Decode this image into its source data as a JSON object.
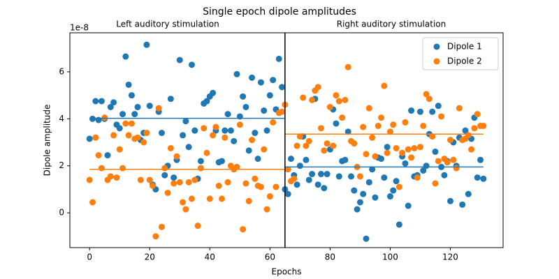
{
  "chart_data": {
    "type": "scatter",
    "title": "Single epoch dipole amplitudes",
    "xlabel": "Epochs",
    "ylabel": "Dipole amplitude",
    "y_offset_label": "1e-8",
    "annotations": [
      "Left auditory stimulation",
      "Right auditory stimulation"
    ],
    "legend": "upper right",
    "xlim": [
      -6.55,
      137.55
    ],
    "ylim": [
      -1.48,
      7.66
    ],
    "xticks": [
      0,
      20,
      40,
      60,
      80,
      100,
      120
    ],
    "yticks": [
      0,
      2,
      4,
      6
    ],
    "vline": 65,
    "x": [
      0,
      1,
      2,
      3,
      4,
      5,
      6,
      7,
      8,
      9,
      10,
      11,
      12,
      13,
      14,
      15,
      16,
      17,
      18,
      19,
      20,
      21,
      22,
      23,
      24,
      25,
      26,
      27,
      28,
      29,
      30,
      31,
      32,
      33,
      34,
      35,
      36,
      37,
      38,
      39,
      40,
      41,
      42,
      43,
      44,
      45,
      46,
      47,
      48,
      49,
      50,
      51,
      52,
      53,
      54,
      55,
      56,
      57,
      58,
      59,
      60,
      61,
      62,
      63,
      64,
      65,
      66,
      67,
      68,
      69,
      70,
      71,
      72,
      73,
      74,
      75,
      76,
      77,
      78,
      79,
      80,
      81,
      82,
      83,
      84,
      85,
      86,
      87,
      88,
      89,
      90,
      91,
      92,
      93,
      94,
      95,
      96,
      97,
      98,
      99,
      100,
      101,
      102,
      103,
      104,
      105,
      106,
      107,
      108,
      109,
      110,
      111,
      112,
      113,
      114,
      115,
      116,
      117,
      118,
      119,
      120,
      121,
      122,
      123,
      124,
      125,
      126,
      127,
      128,
      129,
      130,
      131
    ],
    "series": [
      {
        "name": "Dipole 1",
        "color": "#1f77b4",
        "values": [
          3.15,
          4.0,
          4.75,
          3.95,
          4.75,
          4.0,
          2.45,
          4.5,
          4.7,
          3.75,
          3.6,
          4.2,
          6.65,
          5.45,
          5.0,
          4.2,
          4.5,
          3.1,
          3.4,
          7.15,
          4.55,
          1.2,
          1.0,
          4.3,
          3.4,
          1.6,
          2.0,
          4.85,
          1.5,
          2.25,
          6.5,
          3.3,
          3.9,
          2.8,
          6.3,
          3.5,
          1.45,
          2.2,
          4.65,
          4.75,
          4.95,
          5.1,
          3.5,
          2.15,
          2.2,
          3.5,
          4.2,
          3.5,
          3.05,
          5.9,
          4.1,
          4.95,
          4.5,
          2.65,
          5.75,
          3.4,
          2.3,
          5.55,
          4.35,
          3.5,
          5.0,
          5.65,
          4.4,
          6.55,
          5.35,
          1.0,
          0.8,
          2.3,
          1.6,
          1.2,
          2.0,
          3.25,
          2.25,
          1.4,
          1.65,
          4.85,
          1.2,
          1.65,
          1.05,
          1.65,
          2.7,
          4.4,
          3.8,
          1.55,
          2.2,
          2.25,
          3.45,
          1.55,
          0.95,
          0.15,
          0.45,
          0.8,
          -1.1,
          1.3,
          1.85,
          0.65,
          2.35,
          2.3,
          1.5,
          2.8,
          0.7,
          0.95,
          1.35,
          -0.5,
          2.4,
          2.1,
          0.3,
          4.35,
          1.55,
          1.6,
          4.3,
          1.8,
          2.0,
          3.35,
          4.3,
          2.6,
          4.55,
          1.95,
          1.6,
          2.2,
          0.5,
          3.0,
          2.0,
          3.2,
          0.35,
          3.5,
          0.8,
          3.15,
          4.05,
          1.5,
          2.25,
          1.45
        ],
        "means": [
          {
            "value": 4.02,
            "xmin": 0,
            "xmax": 65
          },
          {
            "value": 1.95,
            "xmin": 65,
            "xmax": 131
          }
        ]
      },
      {
        "name": "Dipole 2",
        "color": "#ff7f0e",
        "values": [
          1.4,
          0.45,
          3.2,
          2.45,
          1.9,
          4.05,
          1.4,
          1.55,
          3.3,
          1.5,
          2.7,
          1.9,
          3.8,
          3.3,
          3.8,
          3.15,
          3.2,
          1.4,
          3.0,
          3.4,
          1.4,
          1.15,
          -1.0,
          4.45,
          -0.6,
          1.9,
          0.85,
          2.75,
          1.25,
          2.4,
          1.3,
          0.45,
          0.15,
          1.3,
          0.6,
          1.4,
          -0.55,
          1.9,
          3.6,
          2.55,
          0.6,
          3.3,
          3.65,
          1.15,
          0.6,
          3.2,
          1.3,
          2.0,
          1.85,
          1.95,
          3.75,
          -0.7,
          1.25,
          0.5,
          3.1,
          1.45,
          1.15,
          1.1,
          2.7,
          0.15,
          0.7,
          3.85,
          1.1,
          4.25,
          4.3,
          4.6,
          1.85,
          1.35,
          1.45,
          2.85,
          3.25,
          4.9,
          2.85,
          3.05,
          4.8,
          5.2,
          5.35,
          3.6,
          2.65,
          2.95,
          4.5,
          2.85,
          5.0,
          4.75,
          4.05,
          4.8,
          6.2,
          3.05,
          2.95,
          1.95,
          1.55,
          3.65,
          2.5,
          4.45,
          3.2,
          2.4,
          3.7,
          4.05,
          5.4,
          2.55,
          3.45,
          3.75,
          2.75,
          1.1,
          2.55,
          3.85,
          2.7,
          2.35,
          2.75,
          1.5,
          2.8,
          3.7,
          5.05,
          4.85,
          3.25,
          1.25,
          2.2,
          4.1,
          2.3,
          2.15,
          3.1,
          2.25,
          1.9,
          4.45,
          3.1,
          3.15,
          3.3,
          2.7,
          3.6,
          4.2,
          3.7,
          3.7
        ],
        "means": [
          {
            "value": 1.85,
            "xmin": 0,
            "xmax": 65
          },
          {
            "value": 3.35,
            "xmin": 65,
            "xmax": 131
          }
        ]
      }
    ]
  }
}
